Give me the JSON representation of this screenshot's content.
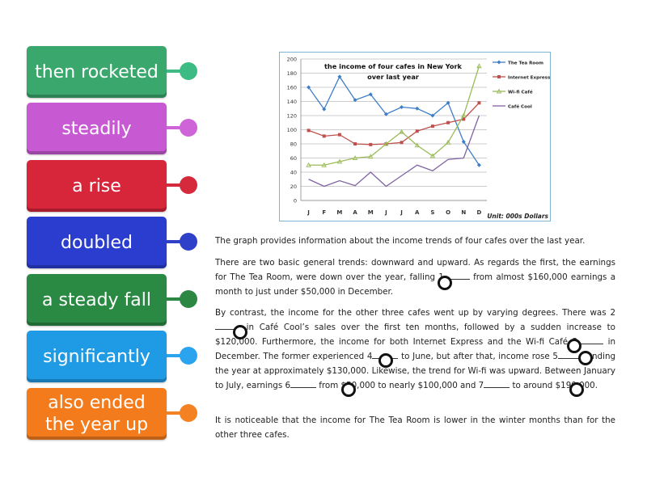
{
  "tiles": [
    {
      "label": "then rocketed",
      "color": "#3aa76d",
      "pin": "#3dbb85"
    },
    {
      "label": "steadily",
      "color": "#c75ad3",
      "pin": "#cf63d8"
    },
    {
      "label": "a rise",
      "color": "#d7253a",
      "pin": "#d42a3c"
    },
    {
      "label": "doubled",
      "color": "#2a3dcf",
      "pin": "#2f40c9"
    },
    {
      "label": "a steady fall",
      "color": "#2a8a43",
      "pin": "#2c8743"
    },
    {
      "label": "significantly",
      "color": "#1f9be6",
      "pin": "#2aa4ef"
    },
    {
      "label": "also ended the year up",
      "color": "#f47b1b",
      "pin": "#f48222"
    }
  ],
  "chart_data": {
    "type": "line",
    "title": "the income of four cafes in New York over last year",
    "unit_note": "Unit: 000s Dollars",
    "categories": [
      "J",
      "F",
      "M",
      "A",
      "M",
      "J",
      "J",
      "A",
      "S",
      "O",
      "N",
      "D"
    ],
    "ylim": [
      0,
      200
    ],
    "yticks": [
      0,
      20,
      40,
      60,
      80,
      100,
      120,
      140,
      160,
      180,
      200
    ],
    "legend_position": "right",
    "series": [
      {
        "name": "The Tea Room",
        "color": "#3e7ec7",
        "marker": "diamond",
        "values": [
          160,
          129,
          175,
          142,
          150,
          122,
          132,
          130,
          120,
          138,
          83,
          50
        ]
      },
      {
        "name": "Internet Express",
        "color": "#c0504d",
        "marker": "square",
        "values": [
          99,
          91,
          93,
          80,
          79,
          80,
          82,
          98,
          105,
          110,
          115,
          138
        ]
      },
      {
        "name": "Wi-fi Café",
        "color": "#9bbb59",
        "marker": "triangle",
        "values": [
          50,
          50,
          55,
          60,
          62,
          80,
          97,
          78,
          63,
          82,
          120,
          190
        ]
      },
      {
        "name": "Café Cool",
        "color": "#8064a2",
        "marker": "none",
        "values": [
          30,
          20,
          28,
          21,
          40,
          20,
          35,
          50,
          42,
          58,
          60,
          120
        ]
      }
    ]
  },
  "passage": {
    "intro": "The graph provides information about the income trends of four cafes over the last year.",
    "p1_a": "There are two basic general trends: downward and upward. As regards the first, the earnings for The Tea Room, were down over the year, falling 1",
    "p1_b": " from almost $160,000 earnings a month to just under $50,000 in December.",
    "p2_a": "By contrast, the income for the other three cafes went up by varying degrees. There was 2",
    "p2_b": " in Café Cool’s sales over the first ten months, followed by a sudden increase to $120,000. Furthermore, the income for both Internet Express and the Wi-fi Café 3",
    "p2_c": " in December. The former experienced 4",
    "p2_d": " to June, but after that, income rose 5",
    "p2_e": " ending the year at approximately $130,000. Likewise, the trend for Wi-fi was upward. Between January to July, earnings 6",
    "p2_f": " from $50,000 to nearly $100,000 and 7",
    "p2_g": " to around $190,000.",
    "p3": "It is noticeable that the income for The Tea Room is lower in the winter months than for the other three cafes."
  }
}
